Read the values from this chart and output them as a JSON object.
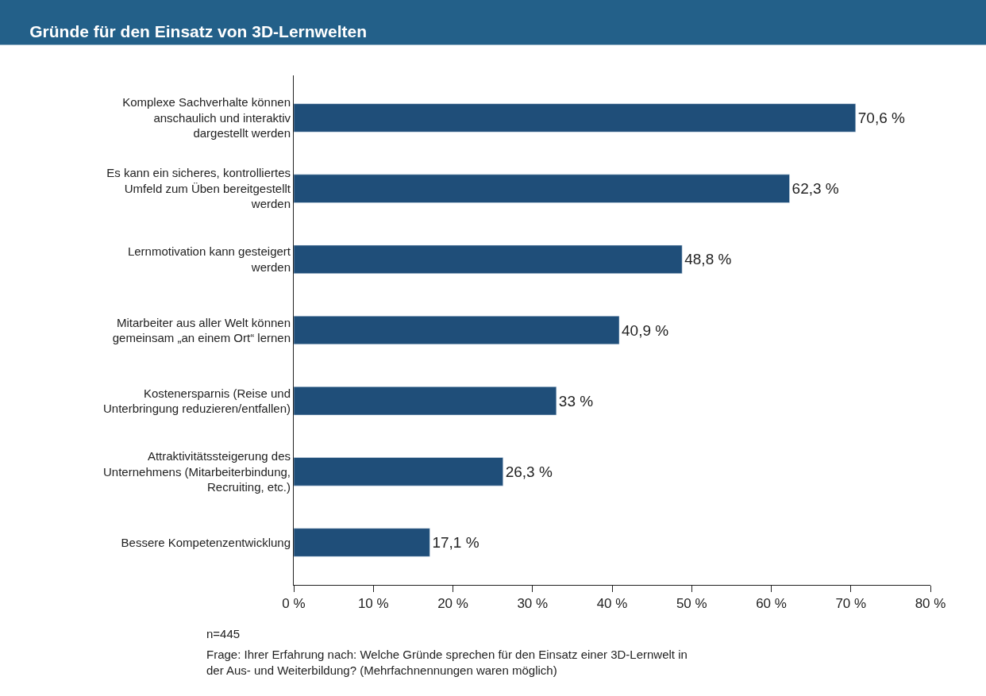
{
  "chart_data": {
    "type": "bar",
    "orientation": "horizontal",
    "title": "Gründe für den Einsatz von 3D-Lernwelten",
    "categories": [
      "Komplexe Sachverhalte können anschaulich und interaktiv dargestellt werden",
      "Es kann ein sicheres, kontrolliertes Umfeld zum Üben bereitgestellt werden",
      "Lernmotivation kann gesteigert werden",
      "Mitarbeiter aus aller Welt können gemeinsam „an einem Ort“ lernen",
      "Kostenersparnis (Reise und Unterbringung reduzieren/entfallen)",
      "Attraktivitätssteigerung des Unternehmens (Mitarbeiterbindung, Recruiting, etc.)",
      "Bessere Kompetenzentwicklung"
    ],
    "values": [
      70.6,
      62.3,
      48.8,
      40.9,
      33,
      26.3,
      17.1
    ],
    "value_labels": [
      "70,6 %",
      "62,3 %",
      "48,8 %",
      "40,9 %",
      "33 %",
      "26,3 %",
      "17,1 %"
    ],
    "color": "#1f4e79",
    "xlim": [
      0,
      80
    ],
    "xticks": [
      {
        "value": 0,
        "label": "0 %"
      },
      {
        "value": 10,
        "label": "10 %"
      },
      {
        "value": 20,
        "label": "20 %"
      },
      {
        "value": 30,
        "label": "30 %"
      },
      {
        "value": 40,
        "label": "40 %"
      },
      {
        "value": 50,
        "label": "50 %"
      },
      {
        "value": 60,
        "label": "60 %"
      },
      {
        "value": 70,
        "label": "70 %"
      },
      {
        "value": 80,
        "label": "80 %"
      }
    ],
    "legend": false,
    "annotations": [
      "n=445",
      "Frage: Ihrer Erfahrung nach: Welche Gründe sprechen für den Einsatz einer 3D-Lernwelt in der Aus- und Weiterbildung? (Mehrfachnennungen waren möglich)"
    ]
  }
}
